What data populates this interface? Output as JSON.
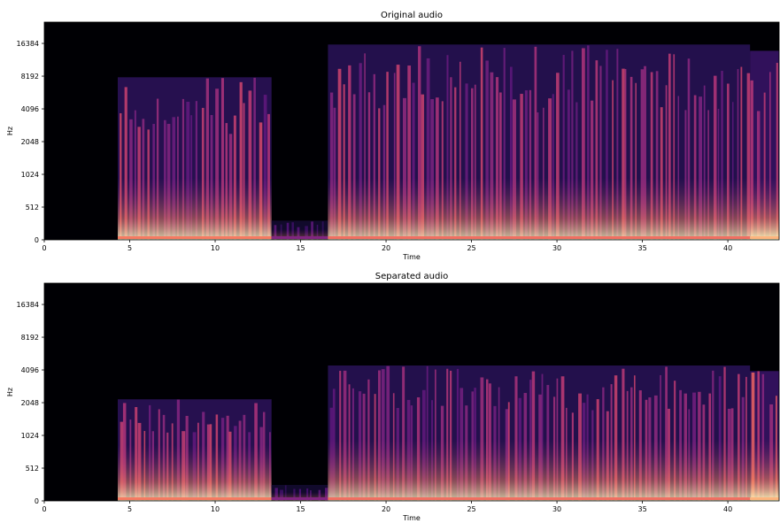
{
  "chart_data": [
    {
      "type": "heatmap",
      "title": "Original audio",
      "xlabel": "Time",
      "ylabel": "Hz",
      "xlim": [
        0,
        43
      ],
      "y_scale": "log",
      "x_ticks": [
        0,
        5,
        10,
        15,
        20,
        25,
        30,
        35,
        40
      ],
      "y_ticks": [
        0,
        512,
        1024,
        2048,
        4096,
        8192,
        16384
      ],
      "colormap": "magma",
      "silence_intervals": [
        [
          0,
          4.3
        ],
        [
          16.6,
          17
        ]
      ],
      "sound_segments": [
        {
          "start": 4.3,
          "end": 13.3,
          "max_hz": 8000,
          "energy": 0.85
        },
        {
          "start": 13.3,
          "end": 16.6,
          "max_hz": 300,
          "energy": 0.45
        },
        {
          "start": 16.6,
          "end": 41.3,
          "max_hz": 16000,
          "energy": 0.82
        },
        {
          "start": 41.3,
          "end": 43,
          "max_hz": 14000,
          "energy": 1.0
        }
      ]
    },
    {
      "type": "heatmap",
      "title": "Separated audio",
      "xlabel": "Time",
      "ylabel": "Hz",
      "xlim": [
        0,
        43
      ],
      "y_scale": "log",
      "x_ticks": [
        0,
        5,
        10,
        15,
        20,
        25,
        30,
        35,
        40
      ],
      "y_ticks": [
        0,
        512,
        1024,
        2048,
        4096,
        8192,
        16384
      ],
      "colormap": "magma",
      "silence_intervals": [
        [
          0,
          4.3
        ],
        [
          16.6,
          17
        ]
      ],
      "sound_segments": [
        {
          "start": 4.3,
          "end": 13.3,
          "max_hz": 2200,
          "energy": 0.85
        },
        {
          "start": 13.3,
          "end": 16.6,
          "max_hz": 250,
          "energy": 0.45
        },
        {
          "start": 16.6,
          "end": 41.3,
          "max_hz": 4500,
          "energy": 0.82
        },
        {
          "start": 41.3,
          "end": 43,
          "max_hz": 4000,
          "energy": 1.0
        }
      ]
    }
  ]
}
